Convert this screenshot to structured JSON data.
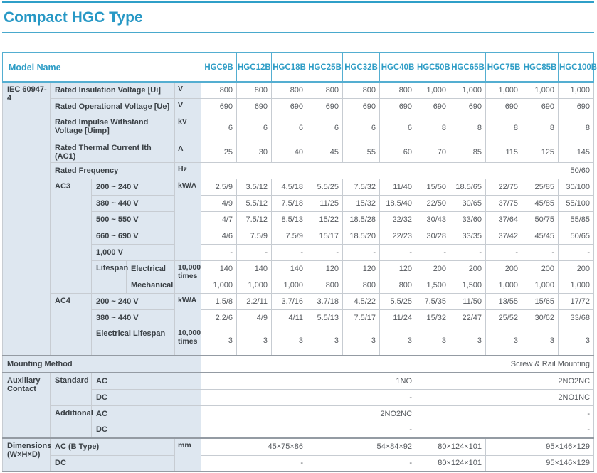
{
  "title": "Compact HGC Type",
  "header": {
    "model_name": "Model Name",
    "models": [
      "HGC9B",
      "HGC12B",
      "HGC18B",
      "HGC25B",
      "HGC32B",
      "HGC40B",
      "HGC50B",
      "HGC65B",
      "HGC75B",
      "HGC85B",
      "HGC100B"
    ]
  },
  "rows": {
    "iec_group": "IEC 60947-4",
    "insulation": {
      "label": "Rated Insulation Voltage [Ui]",
      "unit": "V",
      "values": [
        "800",
        "800",
        "800",
        "800",
        "800",
        "800",
        "1,000",
        "1,000",
        "1,000",
        "1,000",
        "1,000"
      ]
    },
    "operational": {
      "label": "Rated Operational Voltage [Ue]",
      "unit": "V",
      "values": [
        "690",
        "690",
        "690",
        "690",
        "690",
        "690",
        "690",
        "690",
        "690",
        "690",
        "690"
      ]
    },
    "impulse": {
      "label": "Rated Impulse Withstand Voltage [Uimp]",
      "unit": "kV",
      "values": [
        "6",
        "6",
        "6",
        "6",
        "6",
        "6",
        "8",
        "8",
        "8",
        "8",
        "8"
      ]
    },
    "thermal": {
      "label": "Rated Thermal Current Ith (AC1)",
      "unit": "A",
      "values": [
        "25",
        "30",
        "40",
        "45",
        "55",
        "60",
        "70",
        "85",
        "115",
        "125",
        "145"
      ]
    },
    "frequency": {
      "label": "Rated Frequency",
      "unit": "Hz",
      "value": "50/60"
    },
    "ac3": {
      "group": "AC3",
      "unit": "kW/A",
      "v200": {
        "label": "200 ~ 240 V",
        "values": [
          "2.5/9",
          "3.5/12",
          "4.5/18",
          "5.5/25",
          "7.5/32",
          "11/40",
          "15/50",
          "18.5/65",
          "22/75",
          "25/85",
          "30/100"
        ]
      },
      "v380": {
        "label": "380 ~ 440 V",
        "values": [
          "4/9",
          "5.5/12",
          "7.5/18",
          "11/25",
          "15/32",
          "18.5/40",
          "22/50",
          "30/65",
          "37/75",
          "45/85",
          "55/100"
        ]
      },
      "v500": {
        "label": "500 ~ 550 V",
        "values": [
          "4/7",
          "7.5/12",
          "8.5/13",
          "15/22",
          "18.5/28",
          "22/32",
          "30/43",
          "33/60",
          "37/64",
          "50/75",
          "55/85"
        ]
      },
      "v660": {
        "label": "660 ~ 690 V",
        "values": [
          "4/6",
          "7.5/9",
          "7.5/9",
          "15/17",
          "18.5/20",
          "22/23",
          "30/28",
          "33/35",
          "37/42",
          "45/45",
          "50/65"
        ]
      },
      "v1000": {
        "label": "1,000 V",
        "values": [
          "-",
          "-",
          "-",
          "-",
          "-",
          "-",
          "-",
          "-",
          "-",
          "-",
          "-"
        ]
      },
      "lifespan": {
        "label": "Lifespan",
        "unit": "10,000 times",
        "electrical": {
          "label": "Electrical",
          "values": [
            "140",
            "140",
            "140",
            "120",
            "120",
            "120",
            "200",
            "200",
            "200",
            "200",
            "200"
          ]
        },
        "mechanical": {
          "label": "Mechanical",
          "values": [
            "1,000",
            "1,000",
            "1,000",
            "800",
            "800",
            "800",
            "1,500",
            "1,500",
            "1,000",
            "1,000",
            "1,000"
          ]
        }
      }
    },
    "ac4": {
      "group": "AC4",
      "unit": "kW/A",
      "v200": {
        "label": "200 ~ 240 V",
        "values": [
          "1.5/8",
          "2.2/11",
          "3.7/16",
          "3.7/18",
          "4.5/22",
          "5.5/25",
          "7.5/35",
          "11/50",
          "13/55",
          "15/65",
          "17/72"
        ]
      },
      "v380": {
        "label": "380 ~ 440 V",
        "values": [
          "2.2/6",
          "4/9",
          "4/11",
          "5.5/13",
          "7.5/17",
          "11/24",
          "15/32",
          "22/47",
          "25/52",
          "30/62",
          "33/68"
        ]
      },
      "lifespan": {
        "label": "Electrical Lifespan",
        "unit": "10,000 times",
        "values": [
          "3",
          "3",
          "3",
          "3",
          "3",
          "3",
          "3",
          "3",
          "3",
          "3",
          "3"
        ]
      }
    },
    "mounting": {
      "label": "Mounting Method",
      "value": "Screw & Rail Mounting"
    },
    "auxiliary": {
      "group": "Auxiliary Contact",
      "standard": {
        "label": "Standard",
        "ac": {
          "label": "AC",
          "left": "1NO",
          "right": "2NO2NC"
        },
        "dc": {
          "label": "DC",
          "left": "-",
          "right": "2NO1NC"
        }
      },
      "additional": {
        "label": "Additional",
        "ac": {
          "label": "AC",
          "left": "2NO2NC",
          "right": "-"
        },
        "dc": {
          "label": "DC",
          "left": "-",
          "right": "-"
        }
      }
    },
    "dimensions": {
      "group": "Dimensions (W×H×D)",
      "unit": "mm",
      "ac": {
        "label": "AC (B Type)",
        "values": [
          "45×75×86",
          "54×84×92",
          "80×124×101",
          "95×146×129"
        ]
      },
      "dc": {
        "label": "DC",
        "values": [
          "-",
          "-",
          "80×124×101",
          "95×146×129"
        ]
      }
    }
  }
}
